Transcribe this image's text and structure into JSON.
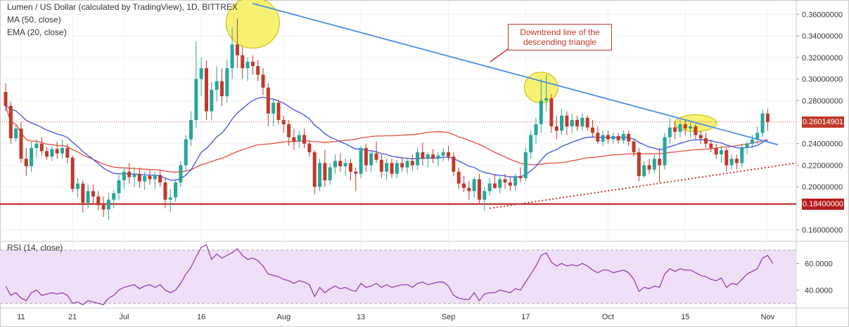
{
  "header": {
    "title": "Lumen / US Dollar (calculated by TradingView), 1D, BITTREX",
    "ma_label": "MA (50, close)",
    "ema_label": "EMA (20, close)",
    "rsi_label": "RSI (14, close)"
  },
  "annotation": {
    "line1": "Downtrend line of the",
    "line2": "descending triangle"
  },
  "colors": {
    "up": "#26a69a",
    "down": "#c0392b",
    "ma": "#e74c3c",
    "ema": "#3f51e6",
    "trendline": "#4a90e2",
    "support": "#b71c1c",
    "highlight": "#f5ef5a",
    "rsi": "#9b3bb5",
    "rsi_band": "#efe0f7"
  },
  "price_labels": {
    "last": "0.26014901",
    "support": "0.18400000"
  },
  "chart_data": [
    {
      "type": "candlestick",
      "title": "Lumen / US Dollar (calculated by TradingView), 1D, BITTREX",
      "y_ticks": [
        "0.36000000",
        "0.34000000",
        "0.32000000",
        "0.30000000",
        "0.28000000",
        "0.24000000",
        "0.22000000",
        "0.20000000",
        "0.16000000"
      ],
      "ylim": [
        0.15,
        0.37
      ],
      "x_ticks": [
        "11",
        "21",
        "Jul",
        "16",
        "Aug",
        "13",
        "Sep",
        "17",
        "Oct",
        "15",
        "Nov"
      ],
      "x_tick_index": [
        3,
        13,
        23,
        38,
        54,
        69,
        86,
        101,
        117,
        132,
        148
      ],
      "support_level": 0.184,
      "last_price": 0.26014901,
      "candles": [
        [
          0.288,
          0.296,
          0.27,
          0.275
        ],
        [
          0.275,
          0.279,
          0.24,
          0.245
        ],
        [
          0.245,
          0.258,
          0.242,
          0.254
        ],
        [
          0.254,
          0.26,
          0.222,
          0.226
        ],
        [
          0.226,
          0.236,
          0.21,
          0.219
        ],
        [
          0.219,
          0.242,
          0.214,
          0.236
        ],
        [
          0.236,
          0.244,
          0.227,
          0.24
        ],
        [
          0.24,
          0.246,
          0.229,
          0.233
        ],
        [
          0.233,
          0.237,
          0.225,
          0.228
        ],
        [
          0.228,
          0.238,
          0.224,
          0.235
        ],
        [
          0.235,
          0.242,
          0.226,
          0.231
        ],
        [
          0.231,
          0.244,
          0.226,
          0.236
        ],
        [
          0.236,
          0.24,
          0.222,
          0.227
        ],
        [
          0.227,
          0.229,
          0.195,
          0.198
        ],
        [
          0.198,
          0.208,
          0.19,
          0.203
        ],
        [
          0.203,
          0.206,
          0.176,
          0.185
        ],
        [
          0.185,
          0.202,
          0.18,
          0.196
        ],
        [
          0.196,
          0.202,
          0.184,
          0.191
        ],
        [
          0.191,
          0.196,
          0.178,
          0.183
        ],
        [
          0.183,
          0.191,
          0.172,
          0.179
        ],
        [
          0.179,
          0.194,
          0.169,
          0.188
        ],
        [
          0.188,
          0.197,
          0.18,
          0.194
        ],
        [
          0.194,
          0.211,
          0.188,
          0.206
        ],
        [
          0.206,
          0.218,
          0.198,
          0.214
        ],
        [
          0.214,
          0.222,
          0.203,
          0.209
        ],
        [
          0.209,
          0.218,
          0.2,
          0.212
        ],
        [
          0.212,
          0.218,
          0.199,
          0.205
        ],
        [
          0.205,
          0.214,
          0.197,
          0.21
        ],
        [
          0.21,
          0.216,
          0.202,
          0.207
        ],
        [
          0.207,
          0.214,
          0.198,
          0.211
        ],
        [
          0.211,
          0.216,
          0.2,
          0.204
        ],
        [
          0.204,
          0.208,
          0.18,
          0.188
        ],
        [
          0.188,
          0.198,
          0.177,
          0.19
        ],
        [
          0.19,
          0.207,
          0.186,
          0.204
        ],
        [
          0.204,
          0.224,
          0.2,
          0.22
        ],
        [
          0.22,
          0.248,
          0.215,
          0.244
        ],
        [
          0.244,
          0.27,
          0.238,
          0.262
        ],
        [
          0.262,
          0.335,
          0.255,
          0.3
        ],
        [
          0.3,
          0.32,
          0.284,
          0.31
        ],
        [
          0.31,
          0.317,
          0.262,
          0.27
        ],
        [
          0.27,
          0.297,
          0.262,
          0.29
        ],
        [
          0.29,
          0.312,
          0.279,
          0.298
        ],
        [
          0.298,
          0.31,
          0.275,
          0.284
        ],
        [
          0.284,
          0.318,
          0.278,
          0.31
        ],
        [
          0.31,
          0.348,
          0.3,
          0.332
        ],
        [
          0.332,
          0.356,
          0.31,
          0.322
        ],
        [
          0.322,
          0.33,
          0.3,
          0.31
        ],
        [
          0.31,
          0.32,
          0.298,
          0.316
        ],
        [
          0.316,
          0.322,
          0.304,
          0.312
        ],
        [
          0.312,
          0.318,
          0.298,
          0.304
        ],
        [
          0.304,
          0.31,
          0.285,
          0.292
        ],
        [
          0.292,
          0.296,
          0.256,
          0.268
        ],
        [
          0.268,
          0.282,
          0.256,
          0.278
        ],
        [
          0.278,
          0.281,
          0.258,
          0.262
        ],
        [
          0.262,
          0.266,
          0.25,
          0.258
        ],
        [
          0.258,
          0.262,
          0.238,
          0.246
        ],
        [
          0.246,
          0.254,
          0.234,
          0.242
        ],
        [
          0.242,
          0.252,
          0.236,
          0.248
        ],
        [
          0.248,
          0.254,
          0.236,
          0.24
        ],
        [
          0.24,
          0.243,
          0.228,
          0.232
        ],
        [
          0.232,
          0.234,
          0.193,
          0.2
        ],
        [
          0.2,
          0.226,
          0.196,
          0.222
        ],
        [
          0.222,
          0.234,
          0.2,
          0.206
        ],
        [
          0.206,
          0.222,
          0.202,
          0.218
        ],
        [
          0.218,
          0.23,
          0.212,
          0.224
        ],
        [
          0.224,
          0.231,
          0.214,
          0.219
        ],
        [
          0.219,
          0.226,
          0.21,
          0.222
        ],
        [
          0.222,
          0.226,
          0.206,
          0.214
        ],
        [
          0.214,
          0.218,
          0.196,
          0.212
        ],
        [
          0.212,
          0.238,
          0.208,
          0.236
        ],
        [
          0.236,
          0.24,
          0.214,
          0.22
        ],
        [
          0.22,
          0.234,
          0.214,
          0.231
        ],
        [
          0.231,
          0.242,
          0.222,
          0.225
        ],
        [
          0.225,
          0.23,
          0.208,
          0.214
        ],
        [
          0.214,
          0.226,
          0.206,
          0.222
        ],
        [
          0.222,
          0.226,
          0.208,
          0.212
        ],
        [
          0.212,
          0.225,
          0.208,
          0.222
        ],
        [
          0.222,
          0.228,
          0.214,
          0.218
        ],
        [
          0.218,
          0.226,
          0.212,
          0.224
        ],
        [
          0.224,
          0.23,
          0.215,
          0.22
        ],
        [
          0.22,
          0.236,
          0.216,
          0.232
        ],
        [
          0.232,
          0.241,
          0.22,
          0.226
        ],
        [
          0.226,
          0.232,
          0.218,
          0.23
        ],
        [
          0.23,
          0.235,
          0.222,
          0.226
        ],
        [
          0.226,
          0.232,
          0.219,
          0.229
        ],
        [
          0.229,
          0.236,
          0.224,
          0.232
        ],
        [
          0.232,
          0.238,
          0.224,
          0.228
        ],
        [
          0.228,
          0.232,
          0.21,
          0.214
        ],
        [
          0.214,
          0.218,
          0.198,
          0.203
        ],
        [
          0.203,
          0.21,
          0.195,
          0.199
        ],
        [
          0.199,
          0.205,
          0.188,
          0.196
        ],
        [
          0.196,
          0.209,
          0.19,
          0.207
        ],
        [
          0.207,
          0.212,
          0.184,
          0.188
        ],
        [
          0.188,
          0.2,
          0.178,
          0.196
        ],
        [
          0.196,
          0.208,
          0.192,
          0.203
        ],
        [
          0.203,
          0.212,
          0.198,
          0.199
        ],
        [
          0.199,
          0.21,
          0.194,
          0.207
        ],
        [
          0.207,
          0.212,
          0.198,
          0.204
        ],
        [
          0.204,
          0.21,
          0.196,
          0.201
        ],
        [
          0.201,
          0.212,
          0.196,
          0.21
        ],
        [
          0.21,
          0.218,
          0.204,
          0.208
        ],
        [
          0.208,
          0.236,
          0.205,
          0.232
        ],
        [
          0.232,
          0.252,
          0.226,
          0.248
        ],
        [
          0.248,
          0.264,
          0.24,
          0.258
        ],
        [
          0.258,
          0.3,
          0.25,
          0.28
        ],
        [
          0.28,
          0.304,
          0.27,
          0.282
        ],
        [
          0.282,
          0.286,
          0.25,
          0.256
        ],
        [
          0.256,
          0.266,
          0.244,
          0.252
        ],
        [
          0.252,
          0.272,
          0.248,
          0.266
        ],
        [
          0.266,
          0.27,
          0.248,
          0.256
        ],
        [
          0.256,
          0.268,
          0.25,
          0.262
        ],
        [
          0.262,
          0.266,
          0.252,
          0.256
        ],
        [
          0.256,
          0.268,
          0.252,
          0.264
        ],
        [
          0.264,
          0.266,
          0.252,
          0.255
        ],
        [
          0.255,
          0.262,
          0.246,
          0.25
        ],
        [
          0.25,
          0.256,
          0.24,
          0.242
        ],
        [
          0.242,
          0.252,
          0.238,
          0.248
        ],
        [
          0.248,
          0.252,
          0.24,
          0.244
        ],
        [
          0.244,
          0.25,
          0.24,
          0.247
        ],
        [
          0.247,
          0.25,
          0.24,
          0.243
        ],
        [
          0.243,
          0.252,
          0.24,
          0.249
        ],
        [
          0.249,
          0.252,
          0.238,
          0.242
        ],
        [
          0.242,
          0.244,
          0.228,
          0.232
        ],
        [
          0.232,
          0.236,
          0.205,
          0.21
        ],
        [
          0.21,
          0.224,
          0.208,
          0.22
        ],
        [
          0.22,
          0.226,
          0.212,
          0.216
        ],
        [
          0.216,
          0.23,
          0.212,
          0.226
        ],
        [
          0.226,
          0.236,
          0.204,
          0.22
        ],
        [
          0.22,
          0.25,
          0.216,
          0.246
        ],
        [
          0.246,
          0.264,
          0.24,
          0.255
        ],
        [
          0.255,
          0.26,
          0.244,
          0.251
        ],
        [
          0.251,
          0.262,
          0.246,
          0.258
        ],
        [
          0.258,
          0.262,
          0.248,
          0.254
        ],
        [
          0.254,
          0.26,
          0.246,
          0.256
        ],
        [
          0.256,
          0.258,
          0.244,
          0.248
        ],
        [
          0.248,
          0.252,
          0.24,
          0.245
        ],
        [
          0.245,
          0.25,
          0.236,
          0.24
        ],
        [
          0.24,
          0.244,
          0.232,
          0.236
        ],
        [
          0.236,
          0.24,
          0.226,
          0.23
        ],
        [
          0.23,
          0.238,
          0.222,
          0.234
        ],
        [
          0.234,
          0.236,
          0.214,
          0.22
        ],
        [
          0.22,
          0.23,
          0.216,
          0.226
        ],
        [
          0.226,
          0.23,
          0.216,
          0.222
        ],
        [
          0.222,
          0.24,
          0.218,
          0.236
        ],
        [
          0.236,
          0.242,
          0.23,
          0.24
        ],
        [
          0.24,
          0.248,
          0.236,
          0.244
        ],
        [
          0.244,
          0.256,
          0.24,
          0.25
        ],
        [
          0.25,
          0.272,
          0.246,
          0.268
        ],
        [
          0.268,
          0.272,
          0.252,
          0.26
        ]
      ]
    },
    {
      "type": "line",
      "title": "RSI (14, close)",
      "y_ticks": [
        "60.0000",
        "40.0000"
      ],
      "ylim": [
        27,
        76
      ],
      "band": [
        30,
        70
      ],
      "values": [
        43,
        36,
        38,
        34,
        32,
        38,
        40,
        36,
        37,
        38,
        37,
        38,
        36,
        30,
        31,
        29,
        32,
        31,
        30,
        29,
        34,
        36,
        40,
        42,
        43,
        44,
        41,
        43,
        44,
        42,
        44,
        40,
        38,
        40,
        45,
        52,
        57,
        65,
        72,
        74,
        63,
        67,
        64,
        66,
        68,
        71,
        66,
        63,
        64,
        62,
        58,
        52,
        51,
        50,
        48,
        47,
        45,
        47,
        46,
        44,
        35,
        42,
        38,
        41,
        43,
        41,
        42,
        40,
        39,
        45,
        42,
        43,
        45,
        42,
        44,
        42,
        43,
        44,
        44,
        42,
        45,
        46,
        44,
        45,
        46,
        46,
        43,
        36,
        34,
        33,
        33,
        38,
        32,
        37,
        38,
        38,
        40,
        39,
        38,
        41,
        40,
        46,
        52,
        58,
        66,
        68,
        61,
        58,
        60,
        58,
        59,
        58,
        60,
        58,
        55,
        53,
        55,
        55,
        53,
        54,
        55,
        53,
        48,
        39,
        42,
        41,
        43,
        42,
        52,
        56,
        54,
        56,
        55,
        55,
        53,
        51,
        50,
        48,
        47,
        49,
        42,
        45,
        44,
        48,
        52,
        54,
        56,
        64,
        66,
        60
      ]
    }
  ]
}
